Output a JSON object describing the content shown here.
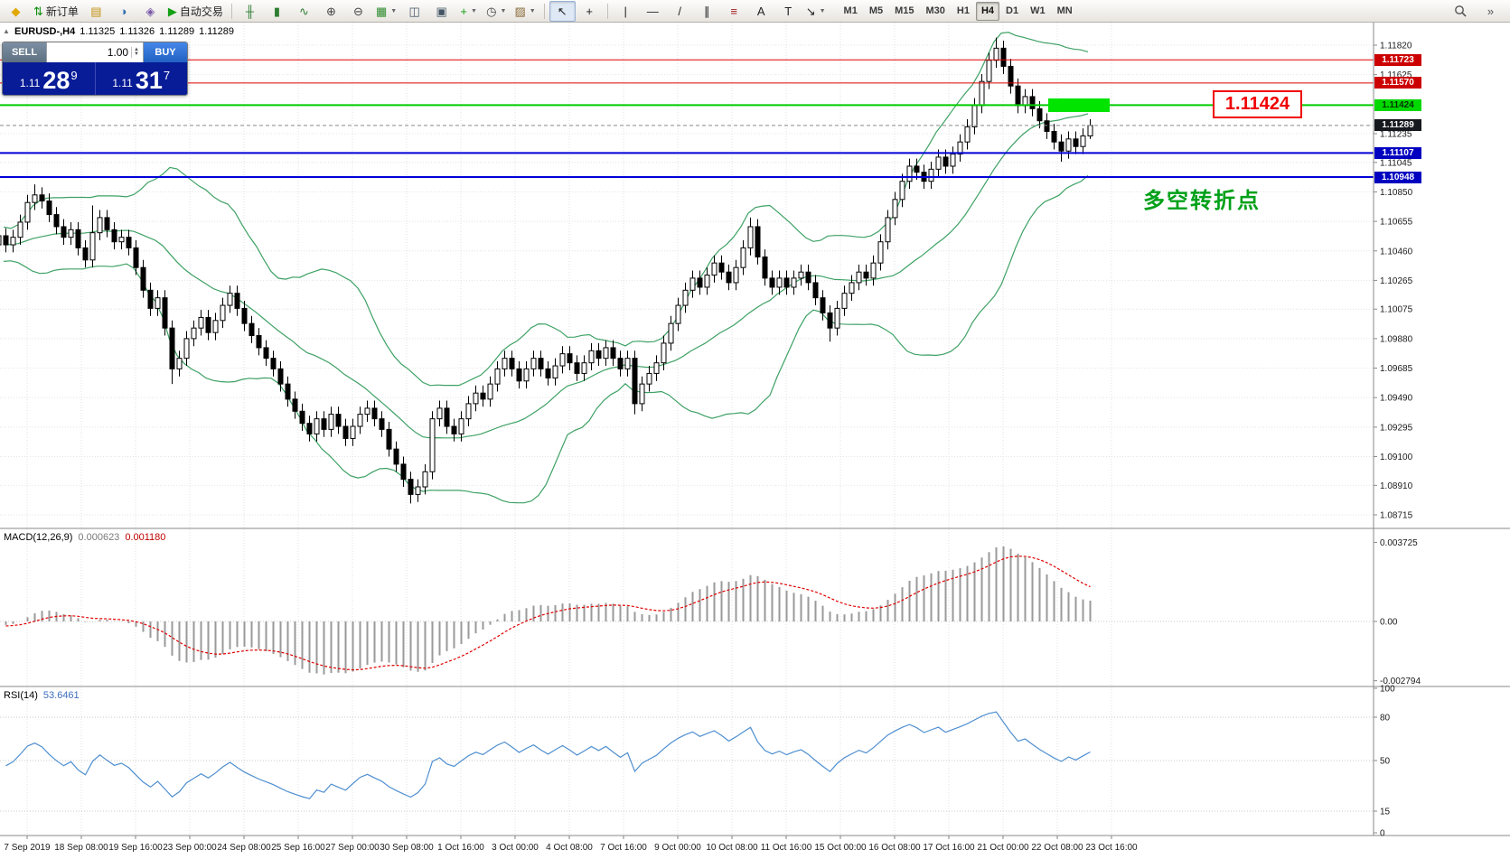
{
  "toolbar": {
    "items": [
      {
        "name": "app-icon",
        "glyph": "◆",
        "color": "#e0a800",
        "interactable": false
      },
      {
        "name": "new-order-button",
        "label": "新订单",
        "glyph": "⇅",
        "color": "#0a8f0a"
      },
      {
        "name": "profiles-icon",
        "glyph": "▤",
        "color": "#c09010"
      },
      {
        "name": "market-watch-icon",
        "glyph": "◑",
        "color": "#2f6fae"
      },
      {
        "name": "navigator-icon",
        "glyph": "◈",
        "color": "#7a58a8"
      },
      {
        "name": "autotrading-button",
        "label": "自动交易",
        "glyph": "▶",
        "color": "#14a014"
      },
      {
        "name": "sep"
      },
      {
        "name": "bar-chart-icon",
        "glyph": "╫",
        "color": "#2e7d32"
      },
      {
        "name": "candlestick-icon",
        "glyph": "▮",
        "color": "#2e7d32"
      },
      {
        "name": "line-chart-icon",
        "glyph": "∿",
        "color": "#2e7d32"
      },
      {
        "name": "zoom-in-icon",
        "glyph": "⊕",
        "color": "#444444"
      },
      {
        "name": "zoom-out-icon",
        "glyph": "⊖",
        "color": "#444444"
      },
      {
        "name": "new-chart-icon",
        "glyph": "▦",
        "color": "#2d8a2d",
        "dropdown": true
      },
      {
        "name": "tile-windows-icon",
        "glyph": "◫",
        "color": "#445566"
      },
      {
        "name": "arrange-windows-icon",
        "glyph": "▣",
        "color": "#445566"
      },
      {
        "name": "indicators-icon",
        "glyph": "+",
        "color": "#12a012",
        "dropdown": true
      },
      {
        "name": "periods-icon",
        "glyph": "◷",
        "color": "#444444",
        "dropdown": true
      },
      {
        "name": "templates-icon",
        "glyph": "▨",
        "color": "#8a6d3b",
        "dropdown": true
      },
      {
        "name": "sep"
      },
      {
        "name": "cursor-icon",
        "glyph": "↖",
        "color": "#222222",
        "active": true
      },
      {
        "name": "crosshair-icon",
        "glyph": "+",
        "color": "#222222"
      },
      {
        "name": "sep"
      },
      {
        "name": "vertical-line-icon",
        "glyph": "|",
        "color": "#222222"
      },
      {
        "name": "horizontal-line-icon",
        "glyph": "—",
        "color": "#222222"
      },
      {
        "name": "trendline-icon",
        "glyph": "/",
        "color": "#222222"
      },
      {
        "name": "equidistant-channel-icon",
        "glyph": "∥",
        "color": "#222222"
      },
      {
        "name": "fibonacci-icon",
        "glyph": "≡",
        "color": "#a22222"
      },
      {
        "name": "text-icon",
        "glyph": "A",
        "color": "#222222"
      },
      {
        "name": "text-label-icon",
        "glyph": "T",
        "color": "#222222"
      },
      {
        "name": "arrows-icon",
        "glyph": "↘",
        "color": "#222222",
        "dropdown": true
      }
    ],
    "timeframes": [
      "M1",
      "M5",
      "M15",
      "M30",
      "H1",
      "H4",
      "D1",
      "W1",
      "MN"
    ],
    "active_timeframe": "H4"
  },
  "chart": {
    "header": {
      "symbol": "EURUSD-,H4",
      "open": "1.11325",
      "high": "1.11326",
      "low": "1.11289",
      "close": "1.11289"
    },
    "one_click": {
      "sell_label": "SELL",
      "buy_label": "BUY",
      "volume": "1.00",
      "sell_price": {
        "prefix": "1.11",
        "big": "28",
        "sup": "9"
      },
      "buy_price": {
        "prefix": "1.11",
        "big": "31",
        "sup": "7"
      }
    },
    "annotation": "多空转折点",
    "callout": "1.11424",
    "hlines": [
      {
        "price": 1.11723,
        "label": "1.11723",
        "color": "#e00000",
        "width": 1,
        "badge_bg": "#cc0000",
        "badge_fg": "#ffffff"
      },
      {
        "price": 1.1157,
        "label": "1.11570",
        "color": "#e00000",
        "width": 1,
        "badge_bg": "#cc0000",
        "badge_fg": "#ffffff"
      },
      {
        "price": 1.11424,
        "label": "1.11424",
        "color": "#00ce00",
        "width": 2,
        "badge_bg": "#00d800",
        "badge_fg": "#003300"
      },
      {
        "price": 1.11107,
        "label": "1.11107",
        "color": "#0000d8",
        "width": 2,
        "badge_bg": "#0000c0",
        "badge_fg": "#ffffff"
      },
      {
        "price": 1.10948,
        "label": "1.10948",
        "color": "#0000d8",
        "width": 2,
        "badge_bg": "#0000c0",
        "badge_fg": "#ffffff"
      }
    ],
    "current_price": {
      "value": 1.11289,
      "label": "1.11289",
      "badge_bg": "#15181d",
      "badge_fg": "#ffffff"
    },
    "highlight_rect": {
      "color": "#00e400"
    }
  },
  "chart_data": {
    "type": "candlestick",
    "symbol": "EURUSD",
    "timeframe": "H4",
    "title": "EURUSD-,H4",
    "warmup_bars": 20,
    "default_wick": 0.0005,
    "closes": [
      1.106,
      1.1052,
      1.1045,
      1.105,
      1.1058,
      1.105,
      1.1042,
      1.1048,
      1.1056,
      1.1048,
      1.104,
      1.1046,
      1.1052,
      1.106,
      1.1055,
      1.1048,
      1.1042,
      1.105,
      1.1056,
      1.105,
      1.1055,
      1.1065,
      1.1078,
      1.1083,
      1.1079,
      1.107,
      1.1062,
      1.1055,
      1.106,
      1.1048,
      1.104,
      1.1058,
      1.1068,
      1.106,
      1.1052,
      1.1055,
      1.1048,
      1.1035,
      1.102,
      1.1008,
      1.1015,
      1.0995,
      1.0968,
      1.0975,
      1.0988,
      1.0995,
      1.1002,
      1.0992,
      1.1,
      1.101,
      1.1018,
      1.1008,
      1.0998,
      1.099,
      1.0982,
      1.0975,
      1.0968,
      1.0958,
      1.0948,
      1.094,
      1.0932,
      1.0925,
      1.0935,
      1.0928,
      1.0938,
      1.093,
      1.0922,
      1.093,
      1.0938,
      1.0942,
      1.0935,
      1.0928,
      1.0915,
      1.0905,
      1.0895,
      1.0885,
      1.089,
      1.09,
      1.0935,
      1.0942,
      1.093,
      1.0925,
      1.0935,
      1.0945,
      1.0952,
      1.0948,
      1.0958,
      1.0968,
      1.0975,
      1.0968,
      1.096,
      1.0968,
      1.0975,
      1.0968,
      1.0962,
      1.097,
      1.0978,
      1.0972,
      1.0965,
      1.0972,
      1.098,
      1.0975,
      1.0982,
      1.0975,
      1.0968,
      1.0975,
      1.0945,
      1.0958,
      1.0965,
      1.0972,
      1.0985,
      1.0998,
      1.101,
      1.102,
      1.1028,
      1.1022,
      1.103,
      1.1038,
      1.1032,
      1.1025,
      1.1035,
      1.1048,
      1.1062,
      1.1042,
      1.1028,
      1.1022,
      1.1028,
      1.1022,
      1.1028,
      1.1032,
      1.1025,
      1.1015,
      1.1005,
      1.0995,
      1.1008,
      1.1018,
      1.1025,
      1.1032,
      1.1028,
      1.1038,
      1.1052,
      1.1068,
      1.108,
      1.1092,
      1.1102,
      1.1098,
      1.1092,
      1.11,
      1.1108,
      1.1102,
      1.111,
      1.1118,
      1.1128,
      1.1142,
      1.1158,
      1.1172,
      1.118,
      1.1168,
      1.1155,
      1.1142,
      1.1148,
      1.114,
      1.1132,
      1.1125,
      1.1118,
      1.1112,
      1.112,
      1.1115,
      1.1122,
      1.11289
    ],
    "wick_overrides": {
      "23": [
        1.109,
        null
      ],
      "31": [
        1.1076,
        null
      ],
      "42": [
        null,
        1.0958
      ],
      "75": [
        null,
        1.0879
      ],
      "106": [
        null,
        1.0938
      ],
      "122": [
        1.1068,
        null
      ],
      "133": [
        null,
        1.0986
      ],
      "156": [
        1.1187,
        null
      ],
      "165": [
        null,
        1.1105
      ],
      "169": [
        1.1133,
        1.112
      ]
    },
    "price_axis_labels": [
      "1.11820",
      "1.11625",
      "1.11235",
      "1.11045",
      "1.10850",
      "1.10655",
      "1.10460",
      "1.10265",
      "1.10075",
      "1.09880",
      "1.09685",
      "1.09490",
      "1.09295",
      "1.09100",
      "1.08910",
      "1.08715"
    ],
    "time_labels": [
      "7 Sep 2019",
      "18 Sep 08:00",
      "19 Sep 16:00",
      "23 Sep 00:00",
      "24 Sep 08:00",
      "25 Sep 16:00",
      "27 Sep 00:00",
      "30 Sep 08:00",
      "1 Oct 16:00",
      "3 Oct 00:00",
      "4 Oct 08:00",
      "7 Oct 16:00",
      "9 Oct 00:00",
      "10 Oct 08:00",
      "11 Oct 16:00",
      "15 Oct 00:00",
      "16 Oct 08:00",
      "17 Oct 16:00",
      "21 Oct 00:00",
      "22 Oct 08:00",
      "23 Oct 16:00"
    ],
    "indicators": {
      "bollinger": {
        "period": 20,
        "deviation": 2,
        "color": "#3da164"
      },
      "macd": {
        "label": "MACD(12,26,9)",
        "fast": 12,
        "slow": 26,
        "signal": 9,
        "value_main": "0.000623",
        "value_signal": "0.001180",
        "axis_labels": [
          "0.003725",
          "0.00",
          "-0.002794"
        ],
        "axis_values": [
          0.003725,
          0,
          -0.002794
        ],
        "hist_color": "#9a9a9a",
        "signal_color": "#e00000"
      },
      "rsi": {
        "label": "RSI(14)",
        "period": 14,
        "value": "53.6461",
        "axis_labels": [
          "100",
          "80",
          "50",
          "15",
          "0"
        ],
        "axis_values": [
          100,
          80,
          50,
          15,
          0
        ],
        "levels": [
          80,
          50,
          15
        ],
        "color": "#4f8fd0"
      }
    }
  }
}
